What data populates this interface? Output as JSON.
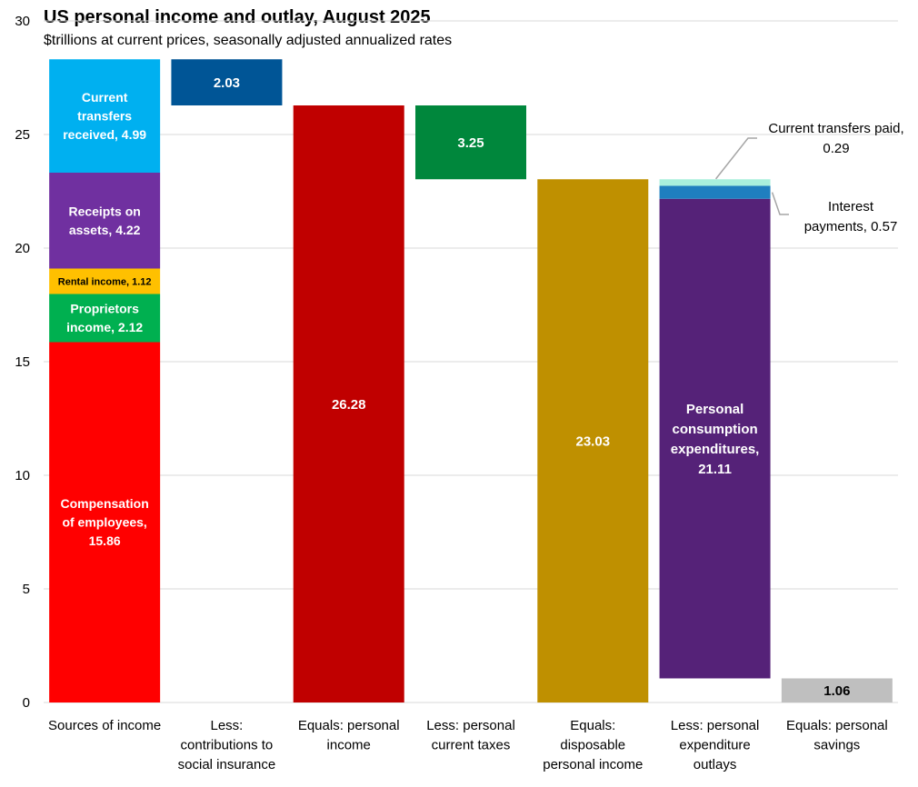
{
  "chart_data": {
    "type": "bar",
    "title": "US personal income and outlay, August 2025",
    "subtitle": "$trillions at current prices, seasonally adjusted annualized rates",
    "ylim": [
      0,
      30
    ],
    "yticks": [
      0,
      5,
      10,
      15,
      20,
      25,
      30
    ],
    "grid": true,
    "categories": [
      [
        "Sources of income"
      ],
      [
        "Less:",
        "contributions to",
        "social insurance"
      ],
      [
        "Equals: personal",
        "income"
      ],
      [
        "Less: personal",
        "current taxes"
      ],
      [
        "Equals:",
        "disposable",
        "personal income"
      ],
      [
        "Less: personal",
        "expenditure",
        "outlays"
      ],
      [
        "Equals: personal",
        "savings"
      ]
    ],
    "segments": [
      {
        "category": 0,
        "name": "Compensation of employees",
        "value": 15.86,
        "base": 0,
        "color": "#ff0000",
        "label": [
          "Compensation",
          "of employees,",
          "15.86"
        ],
        "label_color": "#ffffff",
        "label_size": 14
      },
      {
        "category": 0,
        "name": "Proprietors income",
        "value": 2.12,
        "base": 15.86,
        "color": "#00b050",
        "label": [
          "Proprietors",
          "income, 2.12"
        ],
        "label_color": "#ffffff",
        "label_size": 14
      },
      {
        "category": 0,
        "name": "Rental income",
        "value": 1.12,
        "base": 17.98,
        "color": "#ffc000",
        "label": [
          "Rental income, 1.12"
        ],
        "label_color": "#000000",
        "label_size": 11
      },
      {
        "category": 0,
        "name": "Receipts on assets",
        "value": 4.22,
        "base": 19.1,
        "color": "#7030a0",
        "label": [
          "Receipts on",
          "assets, 4.22"
        ],
        "label_color": "#ffffff",
        "label_size": 14
      },
      {
        "category": 0,
        "name": "Current transfers received",
        "value": 4.99,
        "base": 23.32,
        "color": "#00b0f0",
        "label": [
          "Current",
          "transfers",
          "received, 4.99"
        ],
        "label_color": "#ffffff",
        "label_size": 14
      },
      {
        "category": 1,
        "name": "Contributions to social insurance",
        "value": 2.03,
        "base": 26.28,
        "color": "#005596",
        "label": [
          "2.03"
        ],
        "label_color": "#ffffff",
        "label_size": 15
      },
      {
        "category": 2,
        "name": "Personal income",
        "value": 26.28,
        "base": 0,
        "color": "#c00000",
        "label": [
          "26.28"
        ],
        "label_color": "#ffffff",
        "label_size": 15
      },
      {
        "category": 3,
        "name": "Personal current taxes",
        "value": 3.25,
        "base": 23.03,
        "color": "#00873c",
        "label": [
          "3.25"
        ],
        "label_color": "#ffffff",
        "label_size": 15
      },
      {
        "category": 4,
        "name": "Disposable personal income",
        "value": 23.03,
        "base": 0,
        "color": "#bf9000",
        "label": [
          "23.03"
        ],
        "label_color": "#ffffff",
        "label_size": 15
      },
      {
        "category": 5,
        "name": "Personal consumption expenditures",
        "value": 21.11,
        "base": 1.06,
        "color": "#552278",
        "label": [
          "Personal",
          "consumption",
          "expenditures,",
          "21.11"
        ],
        "label_color": "#ffffff",
        "label_size": 15
      },
      {
        "category": 5,
        "name": "Interest payments",
        "value": 0.57,
        "base": 22.17,
        "color": "#1f7fbf",
        "label": [],
        "label_color": "#ffffff",
        "label_size": 14
      },
      {
        "category": 5,
        "name": "Current transfers paid",
        "value": 0.29,
        "base": 22.74,
        "color": "#a9f0dc",
        "label": [],
        "label_color": "#000000",
        "label_size": 14
      },
      {
        "category": 6,
        "name": "Personal savings",
        "value": 1.06,
        "base": 0,
        "color": "#bfbfbf",
        "label": [
          "1.06"
        ],
        "label_color": "#000000",
        "label_size": 15
      }
    ],
    "callouts": [
      {
        "segment": "Current transfers paid",
        "text": [
          "Current transfers paid,",
          "0.29"
        ]
      },
      {
        "segment": "Interest payments",
        "text": [
          "Interest",
          "payments, 0.57"
        ]
      }
    ]
  }
}
